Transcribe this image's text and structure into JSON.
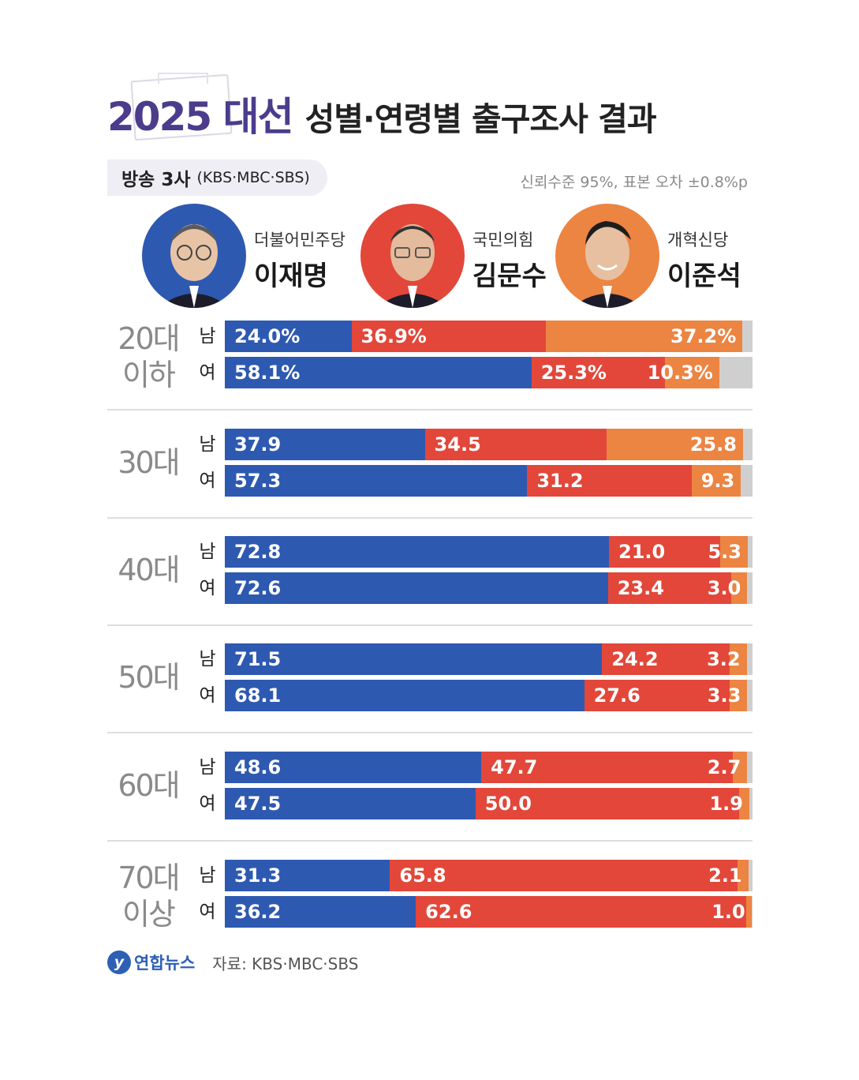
{
  "header": {
    "title_bold": "2025 대선",
    "title_rest": "성별·연령별 출구조사 결과",
    "source_main": "방송 3사",
    "source_detail": "(KBS·MBC·SBS)",
    "confidence": "신뢰수준 95%, 표본 오차 ±0.8%p"
  },
  "candidates": [
    {
      "party": "더불어민주당",
      "name": "이재명",
      "color": "#2e59b1"
    },
    {
      "party": "국민의힘",
      "name": "김문수",
      "color": "#e2473a"
    },
    {
      "party": "개혁신당",
      "name": "이준석",
      "color": "#ec8442"
    }
  ],
  "footer": {
    "logo": "연합뉴스",
    "source": "자료: KBS·MBC·SBS"
  },
  "chart_data": {
    "type": "bar",
    "orientation": "horizontal",
    "stacked": true,
    "series": [
      {
        "name": "이재명",
        "color": "#2e59b1"
      },
      {
        "name": "김문수",
        "color": "#e2473a"
      },
      {
        "name": "이준석",
        "color": "#ec8442"
      }
    ],
    "other_color": "#cfcfcf",
    "groups": [
      {
        "age": "20대\n이하",
        "rows": [
          {
            "gender": "남",
            "values": [
              24.0,
              36.9,
              37.2
            ],
            "labels": [
              "24.0%",
              "36.9%",
              "37.2%"
            ]
          },
          {
            "gender": "여",
            "values": [
              58.1,
              25.3,
              10.3
            ],
            "labels": [
              "58.1%",
              "25.3%",
              "10.3%"
            ]
          }
        ]
      },
      {
        "age": "30대",
        "rows": [
          {
            "gender": "남",
            "values": [
              37.9,
              34.5,
              25.8
            ],
            "labels": [
              "37.9",
              "34.5",
              "25.8"
            ]
          },
          {
            "gender": "여",
            "values": [
              57.3,
              31.2,
              9.3
            ],
            "labels": [
              "57.3",
              "31.2",
              "9.3"
            ]
          }
        ]
      },
      {
        "age": "40대",
        "rows": [
          {
            "gender": "남",
            "values": [
              72.8,
              21.0,
              5.3
            ],
            "labels": [
              "72.8",
              "21.0",
              "5.3"
            ]
          },
          {
            "gender": "여",
            "values": [
              72.6,
              23.4,
              3.0
            ],
            "labels": [
              "72.6",
              "23.4",
              "3.0"
            ]
          }
        ]
      },
      {
        "age": "50대",
        "rows": [
          {
            "gender": "남",
            "values": [
              71.5,
              24.2,
              3.2
            ],
            "labels": [
              "71.5",
              "24.2",
              "3.2"
            ]
          },
          {
            "gender": "여",
            "values": [
              68.1,
              27.6,
              3.3
            ],
            "labels": [
              "68.1",
              "27.6",
              "3.3"
            ]
          }
        ]
      },
      {
        "age": "60대",
        "rows": [
          {
            "gender": "남",
            "values": [
              48.6,
              47.7,
              2.7
            ],
            "labels": [
              "48.6",
              "47.7",
              "2.7"
            ]
          },
          {
            "gender": "여",
            "values": [
              47.5,
              50.0,
              1.9
            ],
            "labels": [
              "47.5",
              "50.0",
              "1.9"
            ]
          }
        ]
      },
      {
        "age": "70대\n이상",
        "rows": [
          {
            "gender": "남",
            "values": [
              31.3,
              65.8,
              2.1
            ],
            "labels": [
              "31.3",
              "65.8",
              "2.1"
            ]
          },
          {
            "gender": "여",
            "values": [
              36.2,
              62.6,
              1.0
            ],
            "labels": [
              "36.2",
              "62.6",
              "1.0"
            ]
          }
        ]
      }
    ],
    "xlim": [
      0,
      100
    ]
  }
}
